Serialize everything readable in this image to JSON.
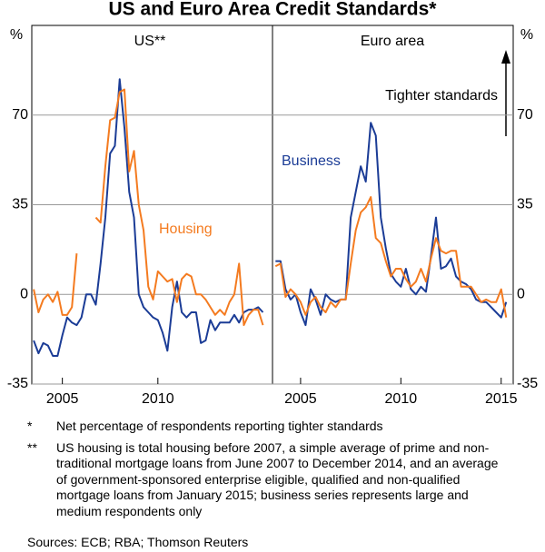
{
  "title": "US and Euro Area Credit Standards*",
  "chart_data": [
    {
      "type": "line",
      "title": "US**",
      "y_unit": "%",
      "x": [
        2003.5,
        2003.75,
        2004,
        2004.25,
        2004.5,
        2004.75,
        2005,
        2005.25,
        2005.5,
        2005.75,
        2006,
        2006.25,
        2006.5,
        2006.75,
        2007,
        2007.25,
        2007.5,
        2007.75,
        2008,
        2008.25,
        2008.5,
        2008.75,
        2009,
        2009.25,
        2009.5,
        2009.75,
        2010,
        2010.25,
        2010.5,
        2010.75,
        2011,
        2011.25,
        2011.5,
        2011.75,
        2012,
        2012.25,
        2012.5,
        2012.75,
        2013,
        2013.25,
        2013.5,
        2013.75,
        2014,
        2014.25,
        2014.5,
        2014.75,
        2015,
        2015.25,
        2015.5
      ],
      "series": [
        {
          "name": "Business",
          "color": "#1b3c96",
          "values": [
            -18,
            -23,
            -19,
            -20,
            -24,
            -24,
            -16,
            -9,
            -11,
            -12,
            -9,
            0,
            0,
            -4,
            12,
            30,
            55,
            58,
            84,
            65,
            40,
            30,
            0,
            -5,
            -7,
            -9,
            -10,
            -15,
            -22,
            -5,
            5,
            -7,
            -9,
            -7,
            -7,
            -19,
            -18,
            -10,
            -14,
            -11,
            -11,
            -11,
            -8,
            -11,
            -7,
            -6,
            -6,
            -5,
            -7
          ]
        },
        {
          "name": "Housing",
          "color": "#f47b20",
          "values": [
            2,
            -7,
            -2,
            0,
            -3,
            1,
            -8,
            -8,
            -5,
            16,
            null,
            null,
            null,
            30,
            28,
            50,
            68,
            69,
            79,
            80,
            48,
            56,
            35,
            25,
            3,
            -2,
            9,
            7,
            5,
            6,
            -3,
            6,
            8,
            7,
            0,
            0,
            -2,
            -5,
            -8,
            -6,
            -8,
            -3,
            0,
            12,
            -12,
            -8,
            -6,
            -6,
            -12
          ]
        }
      ],
      "xlim": [
        2003.4,
        2016
      ],
      "xticks": [
        2005,
        2010
      ],
      "ylim": [
        -35,
        105
      ],
      "yticks": [
        -35,
        0,
        35,
        70
      ],
      "grid": true,
      "annotations": [
        "Housing"
      ]
    },
    {
      "type": "line",
      "title": "Euro area",
      "y_unit": "%",
      "x": [
        2003.75,
        2004,
        2004.25,
        2004.5,
        2004.75,
        2005,
        2005.25,
        2005.5,
        2005.75,
        2006,
        2006.25,
        2006.5,
        2006.75,
        2007,
        2007.25,
        2007.5,
        2007.75,
        2008,
        2008.25,
        2008.5,
        2008.75,
        2009,
        2009.25,
        2009.5,
        2009.75,
        2010,
        2010.25,
        2010.5,
        2010.75,
        2011,
        2011.25,
        2011.5,
        2011.75,
        2012,
        2012.25,
        2012.5,
        2012.75,
        2013,
        2013.25,
        2013.5,
        2013.75,
        2014,
        2014.25,
        2014.5,
        2014.75,
        2015,
        2015.25
      ],
      "series": [
        {
          "name": "Business",
          "color": "#1b3c96",
          "values": [
            13,
            13,
            2,
            -2,
            0,
            -7,
            -12,
            2,
            -2,
            -8,
            0,
            -2,
            -3,
            -2,
            -2,
            30,
            40,
            50,
            44,
            67,
            62,
            30,
            18,
            8,
            5,
            3,
            10,
            2,
            0,
            3,
            1,
            15,
            30,
            10,
            11,
            14,
            7,
            5,
            4,
            2,
            -2,
            -3,
            -3,
            -5,
            -7,
            -9,
            -3
          ]
        },
        {
          "name": "Housing",
          "color": "#f47b20",
          "values": [
            11,
            12,
            -1,
            2,
            0,
            -3,
            -8,
            -3,
            -1,
            -5,
            -7,
            -3,
            -5,
            -2,
            -2,
            12,
            25,
            32,
            34,
            38,
            22,
            20,
            13,
            7,
            10,
            10,
            6,
            3,
            5,
            10,
            5,
            14,
            22,
            17,
            16,
            17,
            17,
            3,
            3,
            3,
            0,
            -3,
            -2,
            -3,
            -3,
            2,
            -9
          ]
        }
      ],
      "xlim": [
        2003.6,
        2015.6
      ],
      "xticks": [
        2005,
        2010,
        2015
      ],
      "ylim": [
        -35,
        105
      ],
      "yticks": [
        -35,
        0,
        35,
        70
      ],
      "grid": true,
      "annotations": [
        "Business",
        "Tighter standards"
      ]
    }
  ],
  "notes": [
    {
      "symbol": "*",
      "text": "Net percentage of respondents reporting tighter standards"
    },
    {
      "symbol": "**",
      "text": "US housing is total housing before 2007, a simple average of prime and non-traditional mortgage loans from June 2007 to December 2014, and an average of government-sponsored enterprise eligible, qualified and non-qualified mortgage loans from January 2015; business series represents large and medium respondents only"
    }
  ],
  "sources": "Sources:   ECB; RBA; Thomson Reuters"
}
